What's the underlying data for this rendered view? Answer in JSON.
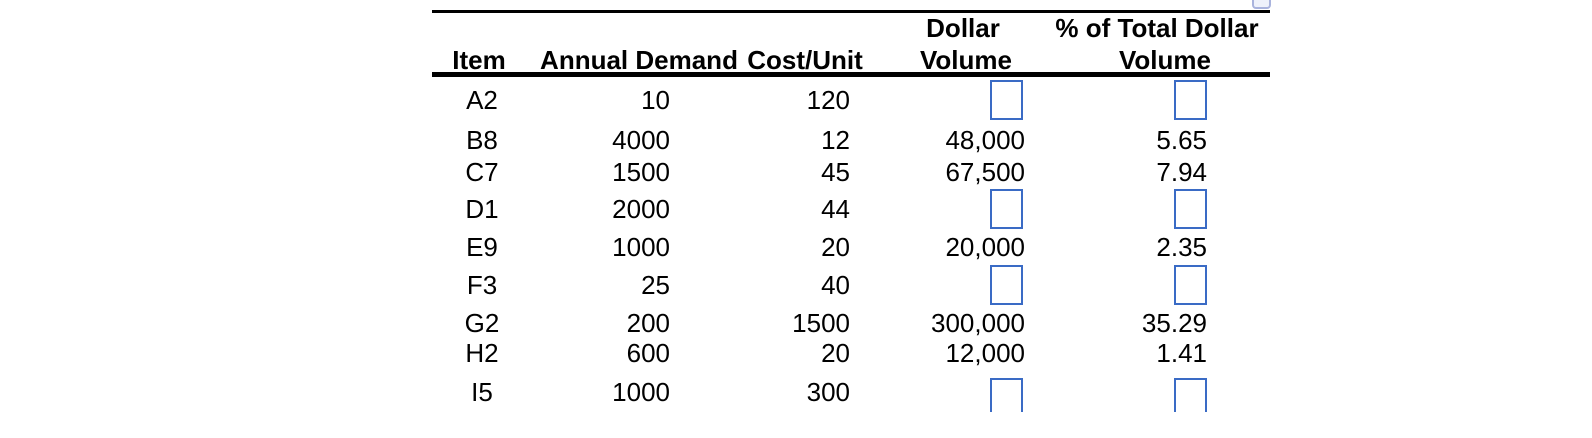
{
  "table": {
    "headers": {
      "item": "Item",
      "annual_demand": "Annual Demand",
      "cost_per_unit": "Cost/Unit",
      "dollar_volume_line1": "Dollar",
      "dollar_volume_line2": "Volume",
      "pct_total_line1": "% of Total Dollar",
      "pct_total_line2": "Volume"
    },
    "rows": [
      {
        "item": "A2",
        "annual_demand": "10",
        "cost_per_unit": "120",
        "dollar_volume": null,
        "pct_total_dollar_volume": null
      },
      {
        "item": "B8",
        "annual_demand": "4000",
        "cost_per_unit": "12",
        "dollar_volume": "48,000",
        "pct_total_dollar_volume": "5.65"
      },
      {
        "item": "C7",
        "annual_demand": "1500",
        "cost_per_unit": "45",
        "dollar_volume": "67,500",
        "pct_total_dollar_volume": "7.94"
      },
      {
        "item": "D1",
        "annual_demand": "2000",
        "cost_per_unit": "44",
        "dollar_volume": null,
        "pct_total_dollar_volume": null
      },
      {
        "item": "E9",
        "annual_demand": "1000",
        "cost_per_unit": "20",
        "dollar_volume": "20,000",
        "pct_total_dollar_volume": "2.35"
      },
      {
        "item": "F3",
        "annual_demand": "25",
        "cost_per_unit": "40",
        "dollar_volume": null,
        "pct_total_dollar_volume": null
      },
      {
        "item": "G2",
        "annual_demand": "200",
        "cost_per_unit": "1500",
        "dollar_volume": "300,000",
        "pct_total_dollar_volume": "35.29"
      },
      {
        "item": "H2",
        "annual_demand": "600",
        "cost_per_unit": "20",
        "dollar_volume": "12,000",
        "pct_total_dollar_volume": "1.41"
      },
      {
        "item": "I5",
        "annual_demand": "1000",
        "cost_per_unit": "300",
        "dollar_volume": null,
        "pct_total_dollar_volume": null
      }
    ],
    "colors": {
      "input_box_border": "#3a6bc5",
      "text": "#000000",
      "rule": "#000000"
    }
  }
}
